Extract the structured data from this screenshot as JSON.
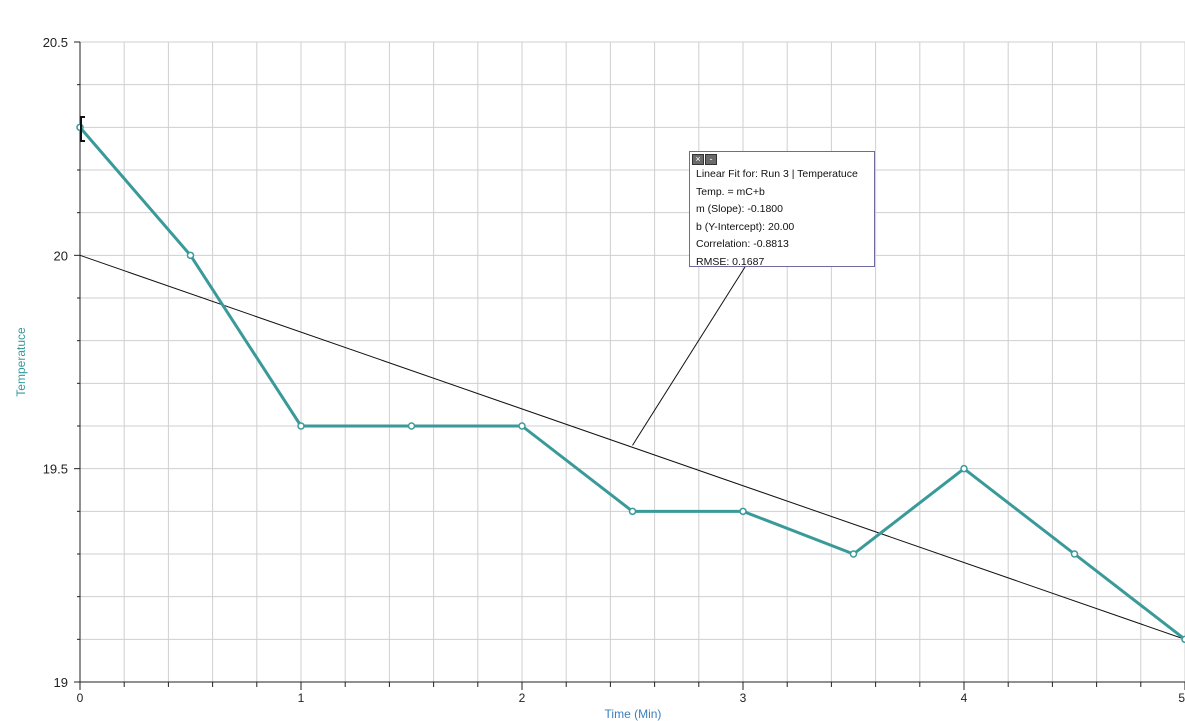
{
  "chart_data": {
    "type": "line",
    "xlabel": "Time (Min)",
    "ylabel": "Temperatuce",
    "xlim": [
      0,
      5
    ],
    "ylim": [
      19,
      20.5
    ],
    "x_ticks": [
      "0",
      "1",
      "2",
      "3",
      "4",
      "5"
    ],
    "y_ticks": [
      "19",
      "19.5",
      "20",
      "20.5"
    ],
    "grid": true,
    "series": [
      {
        "color": "#3a9a9a",
        "x": [
          0,
          0.5,
          1,
          1.5,
          2,
          2.5,
          3,
          3.5,
          4,
          4.5,
          5
        ],
        "y": [
          20.3,
          20.0,
          19.6,
          19.6,
          19.6,
          19.4,
          19.4,
          19.3,
          19.5,
          19.3,
          19.1
        ]
      }
    ],
    "fit_line": {
      "slope": -0.18,
      "intercept": 20.0,
      "color": "#111111"
    },
    "annotation": {
      "lines": [
        "Linear Fit for: Run 3 | Temperatuce",
        "Temp. = mC+b",
        "m (Slope): -0.1800",
        "b (Y-Intercept): 20.00",
        "Correlation: -0.8813",
        "RMSE: 0.1687"
      ],
      "close_icon": "close-icon",
      "minimize_icon": "minimize-icon"
    }
  }
}
